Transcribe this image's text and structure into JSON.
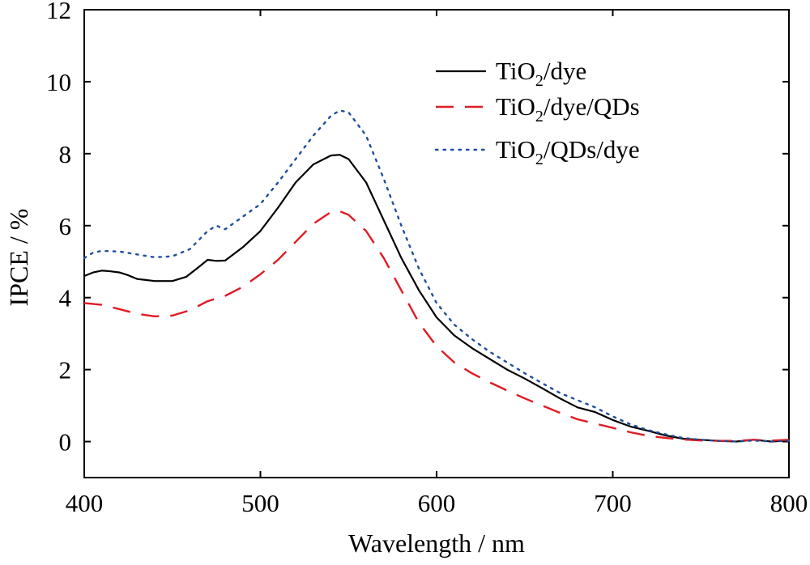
{
  "chart_data": {
    "type": "line",
    "xlabel": "Wavelength / nm",
    "ylabel": "IPCE / %",
    "xlim": [
      400,
      800
    ],
    "ylim": [
      -1,
      12
    ],
    "x_ticks": [
      400,
      500,
      600,
      700,
      800
    ],
    "y_ticks": [
      0,
      2,
      4,
      6,
      8,
      10,
      12
    ],
    "x_tick_labels": [
      "400",
      "500",
      "600",
      "700",
      "800"
    ],
    "y_tick_labels": [
      "0",
      "2",
      "4",
      "6",
      "8",
      "10",
      "12"
    ],
    "grid": false,
    "legend_position": "top-right",
    "series": [
      {
        "name": "TiO2/dye",
        "legend_parts": [
          "TiO",
          "2",
          "/dye"
        ],
        "color": "#000000",
        "style": "solid",
        "points": [
          [
            400,
            4.6
          ],
          [
            405,
            4.7
          ],
          [
            410,
            4.75
          ],
          [
            415,
            4.73
          ],
          [
            420,
            4.7
          ],
          [
            425,
            4.62
          ],
          [
            430,
            4.52
          ],
          [
            440,
            4.46
          ],
          [
            450,
            4.46
          ],
          [
            458,
            4.58
          ],
          [
            465,
            4.85
          ],
          [
            470,
            5.05
          ],
          [
            475,
            5.02
          ],
          [
            480,
            5.03
          ],
          [
            490,
            5.4
          ],
          [
            500,
            5.85
          ],
          [
            510,
            6.5
          ],
          [
            520,
            7.2
          ],
          [
            530,
            7.7
          ],
          [
            540,
            7.95
          ],
          [
            545,
            7.97
          ],
          [
            550,
            7.85
          ],
          [
            560,
            7.2
          ],
          [
            570,
            6.15
          ],
          [
            580,
            5.1
          ],
          [
            590,
            4.2
          ],
          [
            600,
            3.45
          ],
          [
            610,
            2.95
          ],
          [
            620,
            2.6
          ],
          [
            630,
            2.3
          ],
          [
            640,
            2.0
          ],
          [
            650,
            1.75
          ],
          [
            660,
            1.48
          ],
          [
            670,
            1.2
          ],
          [
            680,
            0.95
          ],
          [
            690,
            0.82
          ],
          [
            700,
            0.6
          ],
          [
            710,
            0.42
          ],
          [
            720,
            0.3
          ],
          [
            730,
            0.17
          ],
          [
            740,
            0.08
          ],
          [
            750,
            0.05
          ],
          [
            760,
            0.02
          ],
          [
            770,
            0.0
          ],
          [
            780,
            0.05
          ],
          [
            790,
            0.0
          ],
          [
            800,
            0.03
          ]
        ]
      },
      {
        "name": "TiO2/dye/QDs",
        "legend_parts": [
          "TiO",
          "2",
          "/dye/QDs"
        ],
        "color": "#e01b24",
        "style": "dashed",
        "points": [
          [
            400,
            3.85
          ],
          [
            410,
            3.8
          ],
          [
            420,
            3.68
          ],
          [
            430,
            3.55
          ],
          [
            440,
            3.48
          ],
          [
            450,
            3.5
          ],
          [
            460,
            3.65
          ],
          [
            470,
            3.9
          ],
          [
            480,
            4.05
          ],
          [
            490,
            4.3
          ],
          [
            500,
            4.65
          ],
          [
            510,
            5.05
          ],
          [
            520,
            5.55
          ],
          [
            530,
            6.05
          ],
          [
            540,
            6.38
          ],
          [
            545,
            6.4
          ],
          [
            550,
            6.3
          ],
          [
            560,
            5.85
          ],
          [
            570,
            5.1
          ],
          [
            580,
            4.2
          ],
          [
            590,
            3.3
          ],
          [
            600,
            2.65
          ],
          [
            610,
            2.2
          ],
          [
            620,
            1.9
          ],
          [
            630,
            1.65
          ],
          [
            640,
            1.42
          ],
          [
            650,
            1.2
          ],
          [
            660,
            1.0
          ],
          [
            670,
            0.8
          ],
          [
            680,
            0.62
          ],
          [
            690,
            0.5
          ],
          [
            700,
            0.38
          ],
          [
            710,
            0.26
          ],
          [
            720,
            0.16
          ],
          [
            730,
            0.1
          ],
          [
            740,
            0.06
          ],
          [
            750,
            0.03
          ],
          [
            760,
            0.02
          ],
          [
            770,
            0.02
          ],
          [
            780,
            0.05
          ],
          [
            790,
            0.03
          ],
          [
            800,
            0.05
          ]
        ]
      },
      {
        "name": "TiO2/QDs/dye",
        "legend_parts": [
          "TiO",
          "2",
          "/QDs/dye"
        ],
        "color": "#1f4e9c",
        "style": "dotted",
        "points": [
          [
            400,
            5.1
          ],
          [
            405,
            5.25
          ],
          [
            410,
            5.3
          ],
          [
            420,
            5.28
          ],
          [
            430,
            5.2
          ],
          [
            440,
            5.12
          ],
          [
            450,
            5.15
          ],
          [
            460,
            5.35
          ],
          [
            470,
            5.85
          ],
          [
            475,
            6.0
          ],
          [
            480,
            5.9
          ],
          [
            490,
            6.25
          ],
          [
            500,
            6.6
          ],
          [
            510,
            7.2
          ],
          [
            520,
            7.85
          ],
          [
            530,
            8.5
          ],
          [
            540,
            9.05
          ],
          [
            545,
            9.2
          ],
          [
            550,
            9.15
          ],
          [
            560,
            8.5
          ],
          [
            570,
            7.3
          ],
          [
            580,
            6.0
          ],
          [
            590,
            4.8
          ],
          [
            600,
            3.85
          ],
          [
            610,
            3.25
          ],
          [
            620,
            2.85
          ],
          [
            630,
            2.5
          ],
          [
            640,
            2.2
          ],
          [
            650,
            1.9
          ],
          [
            660,
            1.62
          ],
          [
            670,
            1.35
          ],
          [
            680,
            1.15
          ],
          [
            690,
            0.95
          ],
          [
            700,
            0.7
          ],
          [
            710,
            0.48
          ],
          [
            720,
            0.32
          ],
          [
            730,
            0.2
          ],
          [
            740,
            0.1
          ],
          [
            750,
            0.05
          ],
          [
            760,
            0.02
          ],
          [
            770,
            0.0
          ],
          [
            780,
            0.03
          ],
          [
            790,
            0.0
          ],
          [
            800,
            0.02
          ]
        ]
      }
    ]
  }
}
